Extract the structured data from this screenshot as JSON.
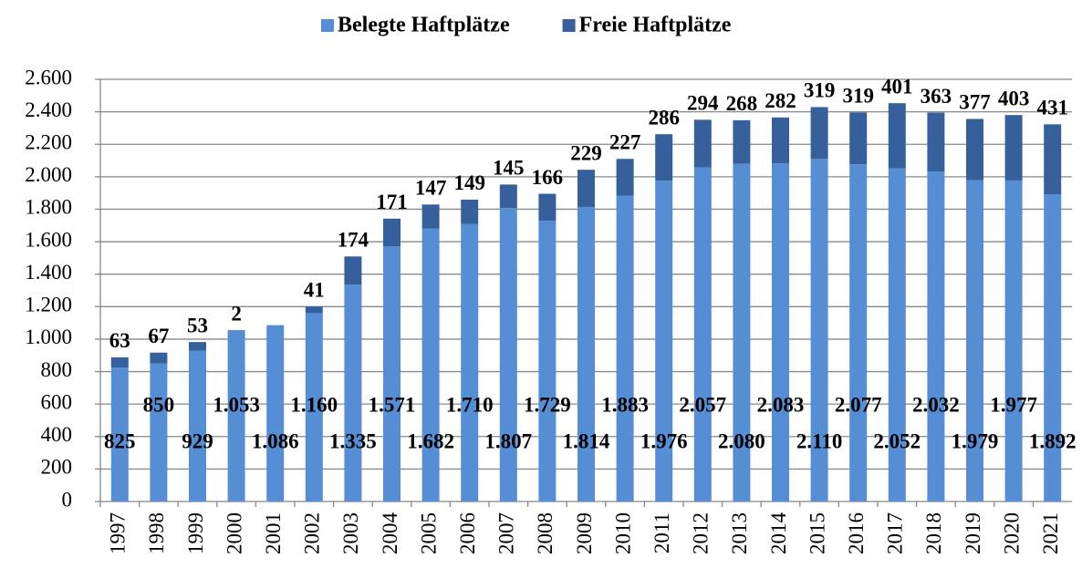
{
  "chart_data": {
    "type": "stacked_bar",
    "categories": [
      "1997",
      "1998",
      "1999",
      "2000",
      "2001",
      "2002",
      "2003",
      "2004",
      "2005",
      "2006",
      "2007",
      "2008",
      "2009",
      "2010",
      "2011",
      "2012",
      "2013",
      "2014",
      "2015",
      "2016",
      "2017",
      "2018",
      "2019",
      "2020",
      "2021"
    ],
    "series": [
      {
        "name": "Belegte Haftplätze",
        "color": "#558ed5",
        "values": [
          825,
          850,
          929,
          1053,
          1086,
          1160,
          1335,
          1571,
          1682,
          1710,
          1807,
          1729,
          1814,
          1883,
          1976,
          2057,
          2080,
          2083,
          2110,
          2077,
          2052,
          2032,
          1979,
          1977,
          1892
        ],
        "value_labels": [
          "825",
          "850",
          "929",
          "1.053",
          "1.086",
          "1.160",
          "1.335",
          "1.571",
          "1.682",
          "1.710",
          "1.807",
          "1.729",
          "1.814",
          "1.883",
          "1.976",
          "2.057",
          "2.080",
          "2.083",
          "2.110",
          "2.077",
          "2.052",
          "2.032",
          "1.979",
          "1.977",
          "1.892"
        ]
      },
      {
        "name": "Freie Haftplätze",
        "color": "#35609b",
        "values": [
          63,
          67,
          53,
          2,
          null,
          41,
          174,
          171,
          147,
          149,
          145,
          166,
          229,
          227,
          286,
          294,
          268,
          282,
          319,
          319,
          401,
          363,
          377,
          403,
          431
        ]
      }
    ],
    "ylim": [
      0,
      2600
    ],
    "yticks": [
      0,
      200,
      400,
      600,
      800,
      {
        "value": 1000,
        "label": "1.000"
      },
      {
        "value": 1200,
        "label": "1.200"
      },
      {
        "value": 1400,
        "label": "1.400"
      },
      {
        "value": 1600,
        "label": "1.600"
      },
      {
        "value": 1800,
        "label": "1.800"
      },
      {
        "value": 2000,
        "label": "2.000"
      },
      {
        "value": 2200,
        "label": "2.200"
      },
      {
        "value": 2400,
        "label": "2.400"
      },
      {
        "value": 2600,
        "label": "2.600"
      }
    ],
    "grid": true,
    "legend": "top"
  }
}
